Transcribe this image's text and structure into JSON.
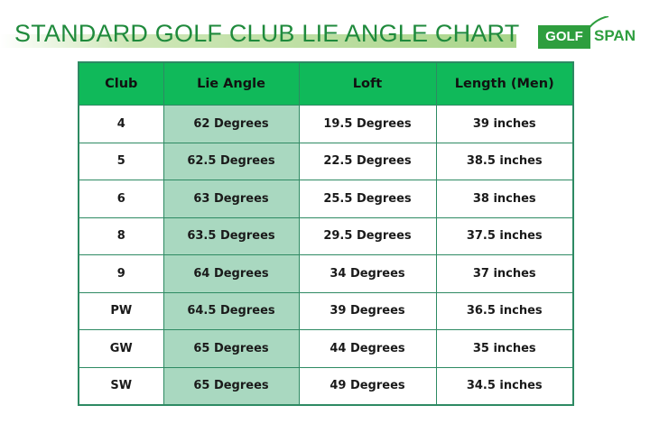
{
  "title": "STANDARD GOLF CLUB LIE ANGLE CHART",
  "logo": {
    "left": "GOLF",
    "right": "SPAN"
  },
  "colors": {
    "header": "#10b95a",
    "highlight_column": "#a9d8c0",
    "border": "#2e8a63",
    "title": "#1f8a3c"
  },
  "chart_data": {
    "type": "table",
    "columns": [
      "Club",
      "Lie Angle",
      "Loft",
      "Length (Men)"
    ],
    "rows": [
      [
        "4",
        "62 Degrees",
        "19.5 Degrees",
        "39 inches"
      ],
      [
        "5",
        "62.5 Degrees",
        "22.5 Degrees",
        "38.5 inches"
      ],
      [
        "6",
        "63 Degrees",
        "25.5 Degrees",
        "38 inches"
      ],
      [
        "8",
        "63.5 Degrees",
        "29.5 Degrees",
        "37.5 inches"
      ],
      [
        "9",
        "64 Degrees",
        "34 Degrees",
        "37 inches"
      ],
      [
        "PW",
        "64.5 Degrees",
        "39 Degrees",
        "36.5 inches"
      ],
      [
        "GW",
        "65 Degrees",
        "44 Degrees",
        "35 inches"
      ],
      [
        "SW",
        "65 Degrees",
        "49 Degrees",
        "34.5 inches"
      ]
    ]
  }
}
